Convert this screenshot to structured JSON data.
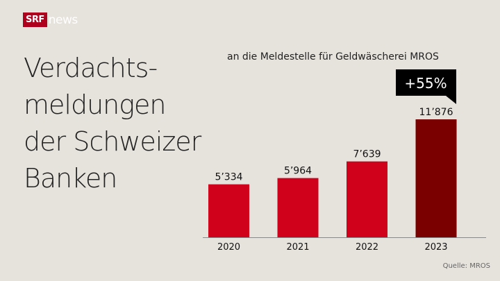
{
  "logo": {
    "brand": "SRF",
    "product": "news"
  },
  "title": [
    "Verdachts-",
    "meldungen",
    "der Schweizer",
    "Banken"
  ],
  "source": "Quelle: MROS",
  "chart_data": {
    "type": "bar",
    "title": "Verdachtsmeldungen der Schweizer Banken",
    "subtitle": "an die Meldestelle für Geldwäscherei MROS",
    "categories": [
      "2020",
      "2021",
      "2022",
      "2023"
    ],
    "values": [
      5334,
      5964,
      7639,
      11876
    ],
    "value_labels": [
      "5’334",
      "5’964",
      "7’639",
      "11’876"
    ],
    "colors": [
      "#d0021b",
      "#d0021b",
      "#d0021b",
      "#7a0000"
    ],
    "annotation": "+55%",
    "ylim": [
      0,
      11876
    ],
    "grid": false
  }
}
